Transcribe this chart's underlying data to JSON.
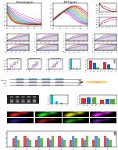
{
  "title_A": "Terminal genes",
  "title_B": "MET genes",
  "colors_A": [
    "#8b0000",
    "#c00000",
    "#e03030",
    "#e06030",
    "#d09020",
    "#a0a020",
    "#50b020",
    "#20a060",
    "#20b0b0",
    "#2080e0",
    "#4040d0",
    "#8030c0",
    "#c030a0",
    "#e03080"
  ],
  "colors_B": [
    "#8b0000",
    "#c00000",
    "#e03030",
    "#e06030",
    "#d09020",
    "#a0a020",
    "#50b020",
    "#20a060",
    "#20b0b0",
    "#2080e0",
    "#4040d0",
    "#8030c0",
    "#c030a0",
    "#e03080"
  ],
  "colors_row1_lines": [
    "#e05050",
    "#4080e0",
    "#e05050",
    "#4080e0",
    "#e05050",
    "#4080e0",
    "#e05050",
    "#4080e0"
  ],
  "scatter_colors": [
    "#c090d0",
    "#c090d0",
    "#c090d0"
  ],
  "bar_E_color": "#00bcd4",
  "bar_F_colors": [
    "#e03030",
    "#2060c0",
    "#50b030"
  ],
  "bar_G_colors": [
    "#e03030",
    "#4080e0",
    "#50b030"
  ],
  "micro_row1": [
    "#cc2020",
    "#20cc20",
    "#cccc00",
    "#cc20cc"
  ],
  "micro_row2": [
    "#202080",
    "#802020",
    "#208020",
    "#502080"
  ],
  "gel_bg": "#222222",
  "bg_color": "#ffffff"
}
